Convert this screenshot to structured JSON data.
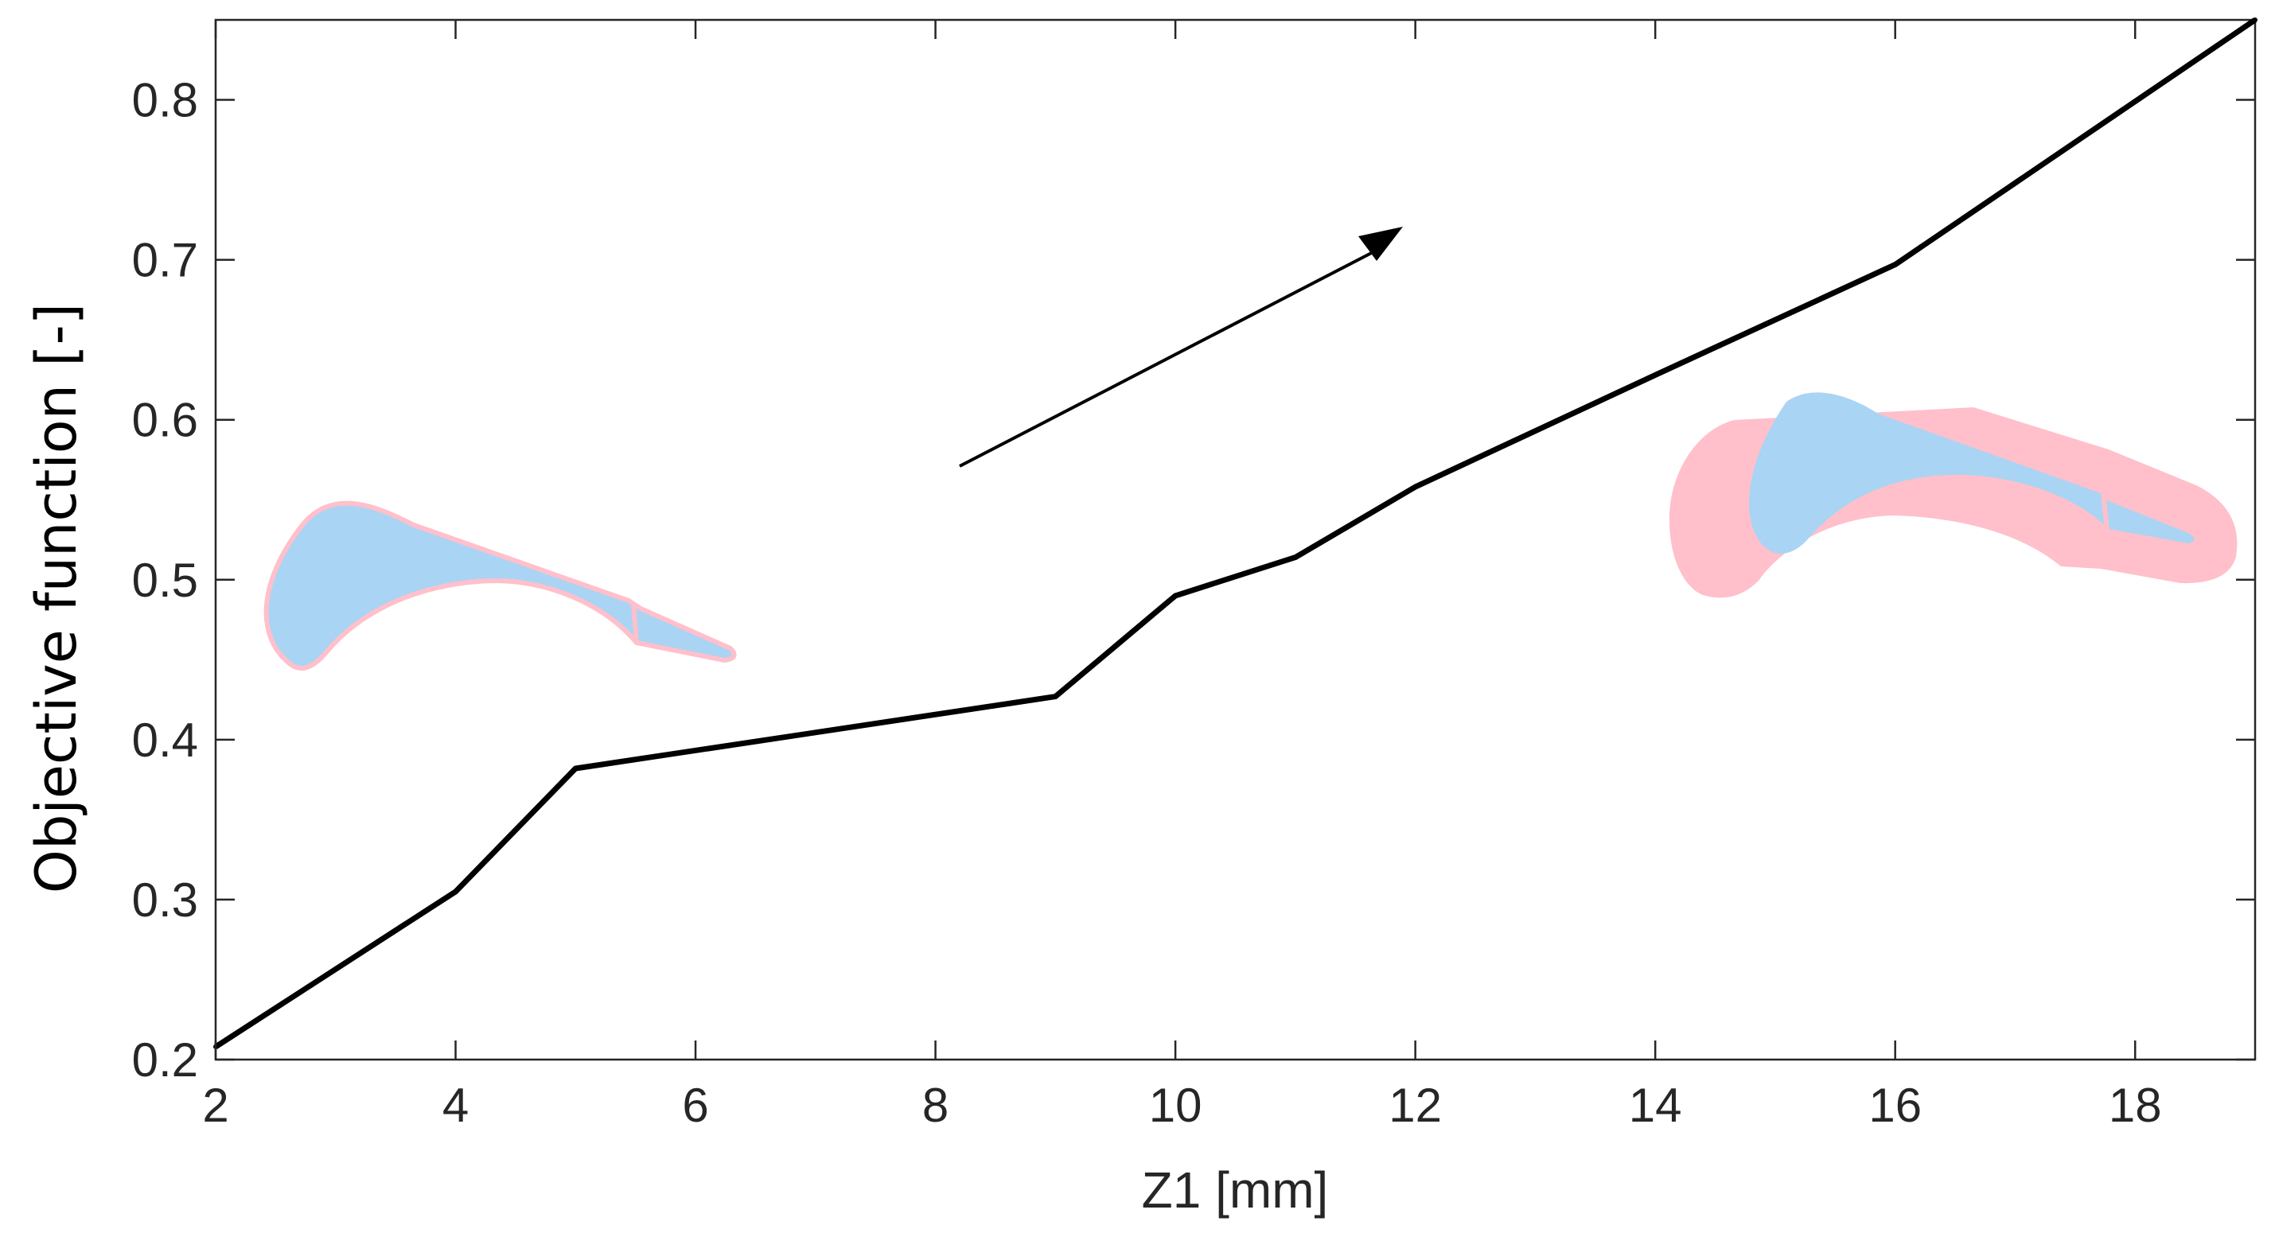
{
  "chart_data": {
    "type": "line",
    "title": "",
    "xlabel": "Z1 [mm]",
    "ylabel": "Objective function [-]",
    "xlim": [
      2,
      19
    ],
    "ylim": [
      0.2,
      0.85
    ],
    "grid": false,
    "x_ticks": [
      2,
      4,
      6,
      8,
      10,
      12,
      14,
      16,
      18
    ],
    "x_tick_labels": [
      "2",
      "4",
      "6",
      "8",
      "10",
      "12",
      "14",
      "16",
      "18"
    ],
    "y_ticks": [
      0.2,
      0.3,
      0.4,
      0.5,
      0.6,
      0.7,
      0.8
    ],
    "y_tick_labels": [
      "0.2",
      "0.3",
      "0.4",
      "0.5",
      "0.6",
      "0.7",
      "0.8"
    ],
    "series": [
      {
        "name": "Objective function",
        "x": [
          2,
          4,
          5,
          9,
          10,
          11,
          12,
          14,
          16,
          19
        ],
        "y": [
          0.208,
          0.305,
          0.382,
          0.427,
          0.49,
          0.514,
          0.558,
          0.628,
          0.697,
          0.85
        ],
        "color": "#000000"
      }
    ],
    "annotations": [
      {
        "type": "arrow",
        "from": [
          8.2,
          0.57
        ],
        "to": [
          11.9,
          0.72
        ],
        "color": "#000000"
      },
      {
        "type": "image",
        "name": "thin-hollow-section-shape",
        "anchor": [
          4.3,
          0.5
        ],
        "fill": "#aad4f3",
        "outline": "#ffc0cb"
      },
      {
        "type": "image",
        "name": "thick-hollow-section-shape",
        "anchor": [
          16.5,
          0.53
        ],
        "fill": "#aad4f3",
        "outline": "#ffc0cb"
      }
    ]
  }
}
